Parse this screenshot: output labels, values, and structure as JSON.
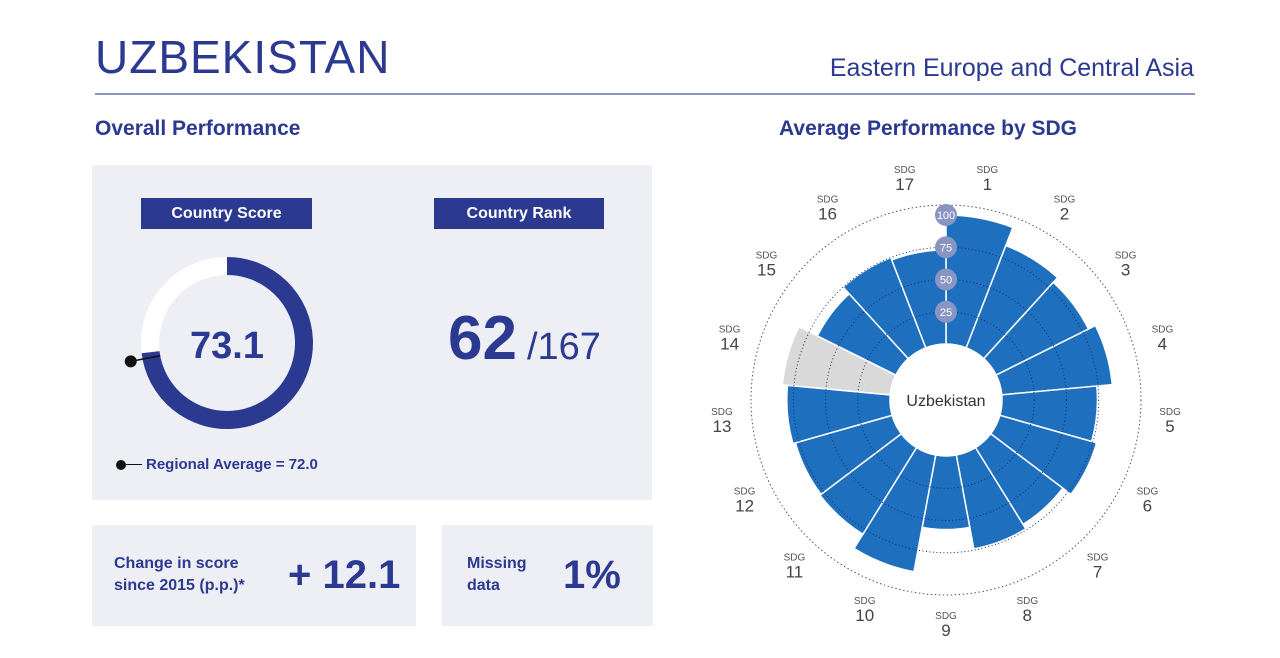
{
  "header": {
    "country": "UZBEKISTAN",
    "region": "Eastern Europe and Central Asia"
  },
  "overall": {
    "section_title": "Overall Performance",
    "score_tag": "Country Score",
    "rank_tag": "Country Rank",
    "score": "73.1",
    "score_value": 73.1,
    "regional_average_value": 72.0,
    "rank": "62",
    "rank_total": "/167",
    "legend": "Regional Average = 72.0",
    "change_label_1": "Change in score",
    "change_label_2": "since 2015 (p.p.)*",
    "change_value": "+ 12.1",
    "missing_label_1": "Missing",
    "missing_label_2": "data",
    "missing_value": "1%"
  },
  "colors": {
    "brand": "#2b3990",
    "bar": "#1f6fbf",
    "missing_bar": "#d9d9d9",
    "panel": "#eeeef5",
    "scale_badge": "#8895c2"
  },
  "chart_data": {
    "type": "bar",
    "layout": "polar",
    "title": "Average Performance by SDG",
    "center_label": "Uzbekistan",
    "label_prefix": "SDG",
    "categories": [
      "1",
      "2",
      "3",
      "4",
      "5",
      "6",
      "7",
      "8",
      "9",
      "10",
      "11",
      "12",
      "13",
      "14",
      "15",
      "16",
      "17"
    ],
    "values": [
      100,
      85,
      80,
      86,
      74,
      78,
      70,
      74,
      57,
      92,
      79,
      78,
      80,
      84,
      68,
      75,
      73
    ],
    "missing": [
      false,
      false,
      false,
      false,
      false,
      false,
      false,
      false,
      false,
      false,
      false,
      false,
      false,
      true,
      false,
      false,
      false
    ],
    "radial_ticks": [
      "25",
      "50",
      "75",
      "100"
    ],
    "rlim": [
      0,
      100
    ]
  }
}
